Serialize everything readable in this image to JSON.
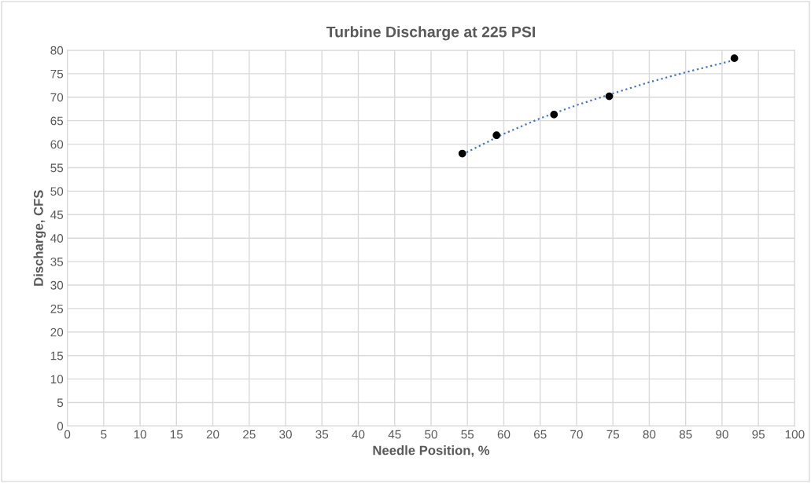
{
  "chart_data": {
    "type": "scatter",
    "title": "Turbine Discharge at 225 PSI",
    "xlabel": "Needle Position, %",
    "ylabel": "Discharge, CFS",
    "x": [
      54.3,
      59.0,
      66.9,
      74.5,
      91.7
    ],
    "series": [
      {
        "color": "#000000",
        "values": [
          58.0,
          61.9,
          66.3,
          70.2,
          78.3
        ],
        "marker": "circle"
      },
      {
        "type": "line",
        "color": "#4472c4",
        "line_style": "dotted",
        "marker": "none",
        "x": [
          54.3,
          60,
          65,
          70,
          75,
          80,
          85,
          91.7
        ],
        "values": [
          57.8,
          62.2,
          65.5,
          68.3,
          70.8,
          73.2,
          75.3,
          77.9
        ]
      }
    ],
    "xlim": [
      0,
      100
    ],
    "xticks": [
      0,
      5,
      10,
      15,
      20,
      25,
      30,
      35,
      40,
      45,
      50,
      55,
      60,
      65,
      70,
      75,
      80,
      85,
      90,
      95,
      100
    ],
    "ylim": [
      0,
      80
    ],
    "yticks": [
      0,
      5,
      10,
      15,
      20,
      25,
      30,
      35,
      40,
      45,
      50,
      55,
      60,
      65,
      70,
      75,
      80
    ],
    "grid": true,
    "legend": false
  }
}
